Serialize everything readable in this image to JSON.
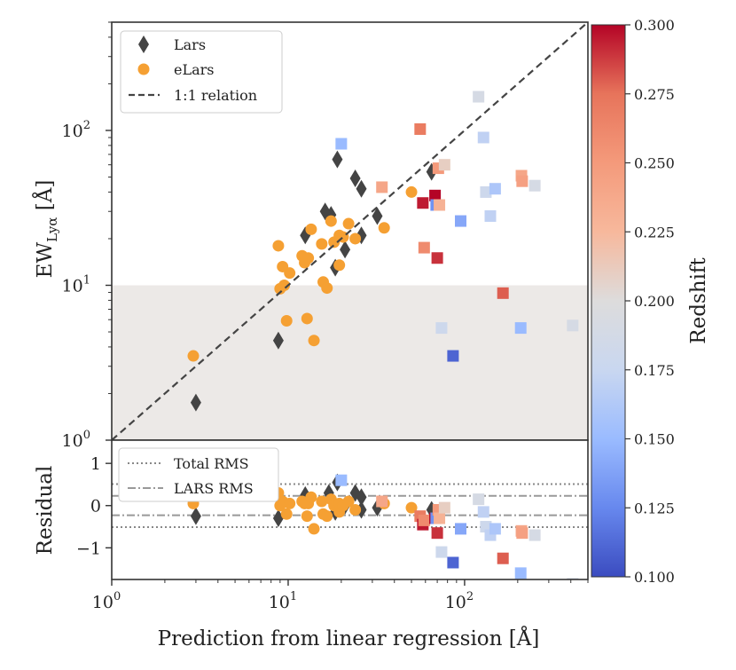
{
  "chart_data": [
    {
      "type": "scatter",
      "panel": "main",
      "xscale": "log",
      "yscale": "log",
      "xlim": [
        1,
        500
      ],
      "ylim": [
        1,
        500
      ],
      "xlabel": "Prediction from linear regression [Å]",
      "ylabel": "EW",
      "ylabel_sub": "Lyα",
      "ylabel_unit": " [Å]",
      "x_ticks": [
        {
          "v": 1,
          "t": "10"
        },
        {
          "v": 10,
          "t": "10"
        },
        {
          "v": 100,
          "t": "10"
        }
      ],
      "x_tick_exp": [
        "0",
        "1",
        "2"
      ],
      "y_ticks": [
        {
          "v": 1,
          "t": "10"
        },
        {
          "v": 10,
          "t": "10"
        },
        {
          "v": 100,
          "t": "10"
        }
      ],
      "y_tick_exp": [
        "0",
        "1",
        "2"
      ],
      "shaded_band": {
        "y_from": 1,
        "y_to": 10,
        "color": "#ece9e7"
      },
      "reference_line": {
        "label": "1:1 relation",
        "style": "dashed"
      },
      "legend": {
        "position": "top-left",
        "entries": [
          "Lars",
          "eLars",
          "1:1 relation"
        ]
      },
      "series": [
        {
          "name": "Lars",
          "marker": "diamond",
          "color": "#444444",
          "points": [
            [
              3.0,
              1.75
            ],
            [
              8.8,
              4.4
            ],
            [
              12.5,
              21.0
            ],
            [
              16.2,
              30.0
            ],
            [
              17.5,
              28.5
            ],
            [
              18.5,
              13.0
            ],
            [
              19.0,
              65.0
            ],
            [
              21.0,
              17.0
            ],
            [
              24.0,
              49.0
            ],
            [
              26.0,
              42.0
            ],
            [
              26.0,
              21.0
            ],
            [
              32.0,
              28.0
            ],
            [
              65.0,
              54.0
            ]
          ]
        },
        {
          "name": "eLars",
          "marker": "circle",
          "color": "#f5a033",
          "points": [
            [
              2.9,
              3.5
            ],
            [
              8.8,
              18.0
            ],
            [
              9.0,
              9.5
            ],
            [
              9.3,
              13.2
            ],
            [
              9.5,
              10.0
            ],
            [
              9.8,
              5.9
            ],
            [
              10.2,
              12.0
            ],
            [
              12.0,
              15.5
            ],
            [
              12.4,
              14.0
            ],
            [
              12.8,
              6.1
            ],
            [
              13.0,
              15.0
            ],
            [
              13.5,
              23.0
            ],
            [
              14.0,
              4.4
            ],
            [
              15.5,
              18.5
            ],
            [
              15.8,
              10.5
            ],
            [
              16.6,
              9.6
            ],
            [
              17.5,
              26.0
            ],
            [
              18.2,
              19.0
            ],
            [
              19.5,
              13.5
            ],
            [
              19.5,
              21.0
            ],
            [
              20.5,
              20.5
            ],
            [
              22.0,
              25.0
            ],
            [
              24.0,
              20.0
            ],
            [
              35.0,
              23.5
            ],
            [
              50.0,
              40.0
            ]
          ]
        },
        {
          "name": "",
          "marker": "square",
          "colorscale": "coolwarm",
          "cmin": 0.1,
          "cmax": 0.3,
          "points": [
            [
              20.0,
              82,
              0.15
            ],
            [
              34.0,
              43,
              0.24
            ],
            [
              56.0,
              102,
              0.27
            ],
            [
              58.0,
              34,
              0.295
            ],
            [
              59.0,
              17.5,
              0.26
            ],
            [
              68.0,
              38,
              0.3
            ],
            [
              69.0,
              33,
              0.13
            ],
            [
              70.0,
              15.0,
              0.29
            ],
            [
              71.0,
              57,
              0.25
            ],
            [
              72.0,
              33,
              0.23
            ],
            [
              74.0,
              5.3,
              0.18
            ],
            [
              77.0,
              60,
              0.21
            ],
            [
              86.0,
              3.5,
              0.11
            ],
            [
              95.0,
              26,
              0.14
            ],
            [
              120.0,
              165,
              0.19
            ],
            [
              128.0,
              90,
              0.17
            ],
            [
              132.0,
              40,
              0.18
            ],
            [
              140.0,
              28,
              0.17
            ],
            [
              149.0,
              42,
              0.16
            ],
            [
              165.0,
              8.9,
              0.28
            ],
            [
              208.0,
              5.3,
              0.15
            ],
            [
              210.0,
              51,
              0.24
            ],
            [
              212.0,
              47,
              0.245
            ],
            [
              250.0,
              44,
              0.19
            ],
            [
              410.0,
              5.5,
              0.19
            ]
          ]
        }
      ]
    },
    {
      "type": "scatter",
      "panel": "residual",
      "xscale": "log",
      "yscale": "linear",
      "xlim": [
        1,
        500
      ],
      "ylim": [
        -1.75,
        1.55
      ],
      "ylabel": "Residual",
      "y_ticks": [
        {
          "v": 1,
          "t": "1"
        },
        {
          "v": 0,
          "t": "0"
        },
        {
          "v": -1,
          "t": "−1"
        }
      ],
      "lines": [
        {
          "name": "Total RMS",
          "style": "dotted",
          "values": [
            0.51,
            -0.51
          ]
        },
        {
          "name": "LARS RMS",
          "style": "dashdot",
          "values": [
            0.23,
            -0.23
          ]
        }
      ],
      "legend": {
        "position": "top-left",
        "entries": [
          "Total RMS",
          "LARS RMS"
        ]
      },
      "series": [
        {
          "name": "Lars",
          "marker": "diamond",
          "color": "#444444",
          "points": [
            [
              3.0,
              -0.25
            ],
            [
              8.8,
              -0.3
            ],
            [
              12.5,
              0.25
            ],
            [
              17.0,
              0.3
            ],
            [
              18.5,
              -0.15
            ],
            [
              19.0,
              0.55
            ],
            [
              21.0,
              0.0
            ],
            [
              24.0,
              0.3
            ],
            [
              26.0,
              0.2
            ],
            [
              26.0,
              -0.1
            ],
            [
              32.0,
              -0.05
            ],
            [
              65.0,
              -0.1
            ]
          ]
        },
        {
          "name": "eLars",
          "marker": "circle",
          "color": "#f5a033",
          "points": [
            [
              2.9,
              0.05
            ],
            [
              8.8,
              0.3
            ],
            [
              9.0,
              0.0
            ],
            [
              9.3,
              0.1
            ],
            [
              9.8,
              -0.2
            ],
            [
              10.2,
              0.05
            ],
            [
              12.0,
              0.1
            ],
            [
              12.4,
              0.05
            ],
            [
              12.8,
              -0.25
            ],
            [
              13.0,
              0.05
            ],
            [
              13.5,
              0.2
            ],
            [
              14.0,
              -0.55
            ],
            [
              15.5,
              0.1
            ],
            [
              15.8,
              -0.2
            ],
            [
              16.6,
              -0.25
            ],
            [
              17.5,
              0.15
            ],
            [
              18.2,
              0.0
            ],
            [
              19.5,
              -0.15
            ],
            [
              19.5,
              0.05
            ],
            [
              20.5,
              0.0
            ],
            [
              22.0,
              0.1
            ],
            [
              24.0,
              -0.1
            ],
            [
              35.0,
              0.05
            ],
            [
              50.0,
              -0.05
            ]
          ]
        },
        {
          "name": "",
          "marker": "square",
          "colorscale": "coolwarm",
          "cmin": 0.1,
          "cmax": 0.3,
          "points": [
            [
              20.0,
              0.6,
              0.15
            ],
            [
              34.0,
              0.1,
              0.24
            ],
            [
              56.0,
              -0.25,
              0.27
            ],
            [
              58.0,
              -0.45,
              0.295
            ],
            [
              59.0,
              -0.35,
              0.26
            ],
            [
              68.0,
              -0.3,
              0.3
            ],
            [
              69.0,
              -0.3,
              0.13
            ],
            [
              70.0,
              -0.65,
              0.29
            ],
            [
              71.0,
              -0.1,
              0.25
            ],
            [
              72.0,
              -0.3,
              0.23
            ],
            [
              74.0,
              -1.1,
              0.18
            ],
            [
              77.0,
              -0.05,
              0.21
            ],
            [
              86.0,
              -1.35,
              0.11
            ],
            [
              95.0,
              -0.55,
              0.14
            ],
            [
              120.0,
              0.15,
              0.19
            ],
            [
              128.0,
              -0.15,
              0.17
            ],
            [
              132.0,
              -0.5,
              0.18
            ],
            [
              140.0,
              -0.7,
              0.17
            ],
            [
              149.0,
              -0.55,
              0.16
            ],
            [
              165.0,
              -1.25,
              0.28
            ],
            [
              208.0,
              -1.6,
              0.15
            ],
            [
              210.0,
              -0.6,
              0.24
            ],
            [
              212.0,
              -0.65,
              0.245
            ],
            [
              250.0,
              -0.7,
              0.19
            ],
            [
              410.0,
              -1.85,
              0.19
            ]
          ]
        }
      ]
    }
  ],
  "colorbar": {
    "label": "Redshift",
    "min": 0.1,
    "max": 0.3,
    "ticks": [
      "0.100",
      "0.125",
      "0.150",
      "0.175",
      "0.200",
      "0.225",
      "0.250",
      "0.275",
      "0.300"
    ],
    "colors": [
      "#3b4cc0",
      "#6788ee",
      "#9abbff",
      "#c9d7f0",
      "#dddcdc",
      "#f7b89c",
      "#f49a7b",
      "#e7745b",
      "#b40426"
    ]
  }
}
